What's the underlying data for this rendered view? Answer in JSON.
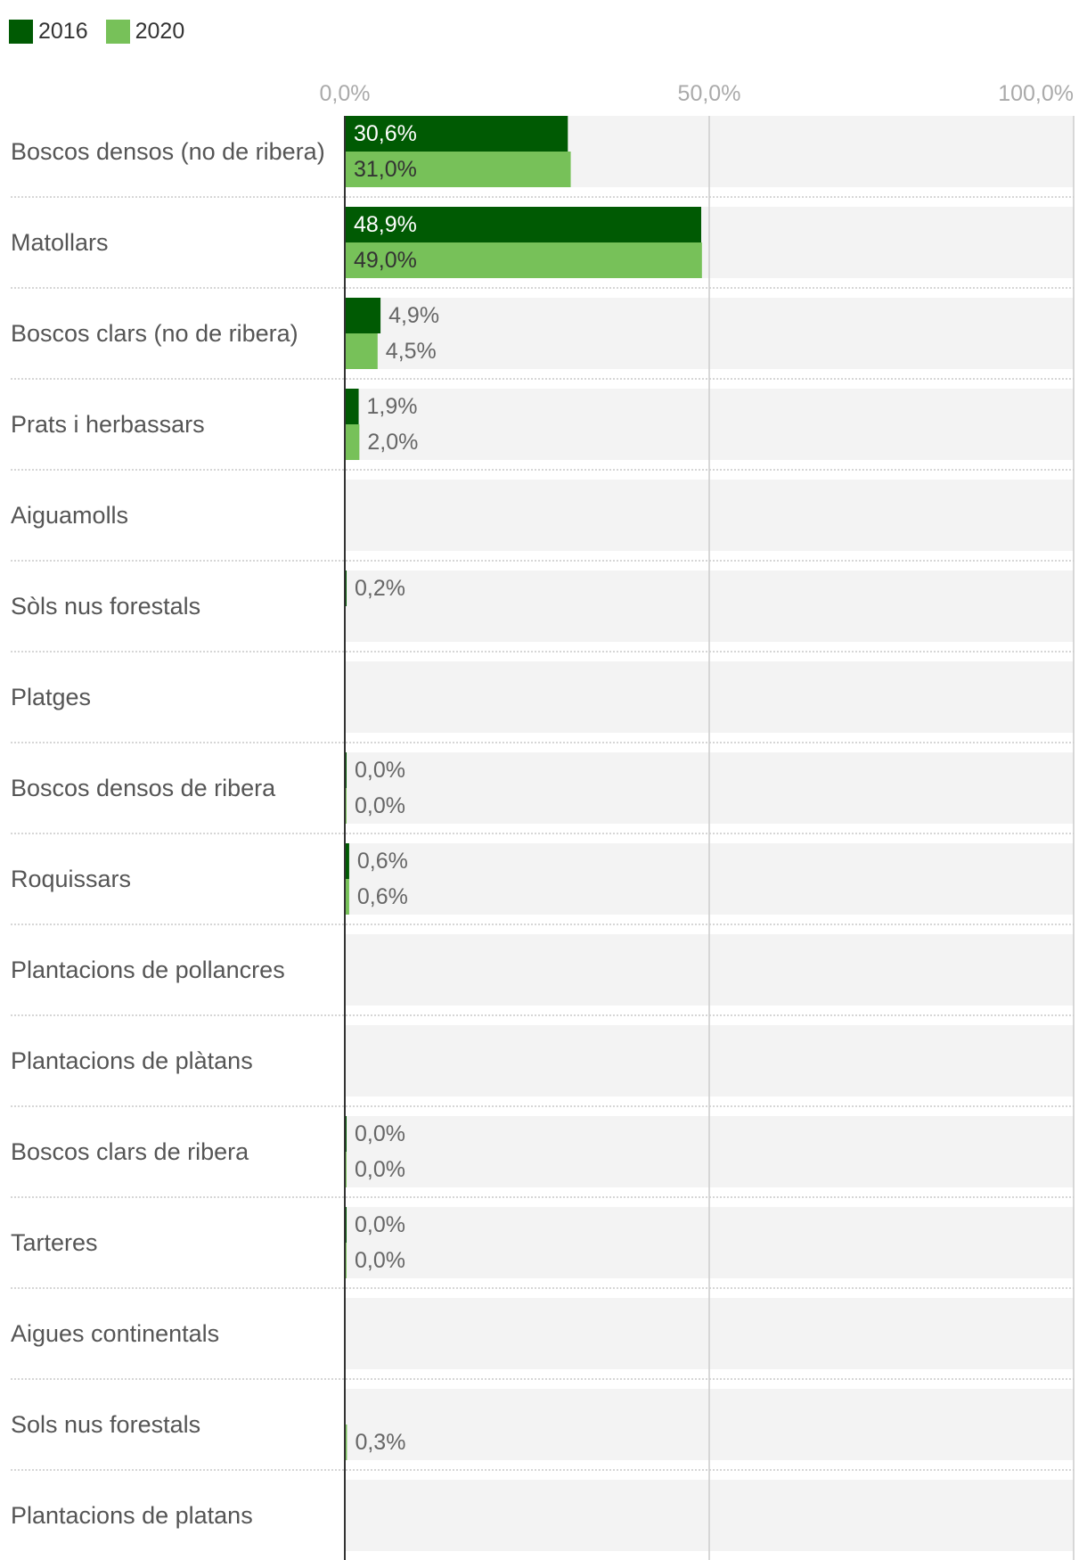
{
  "colors": {
    "2016": "#005a03",
    "2020": "#77c159",
    "row_bg": "#f3f3f3",
    "gridline": "#cccccc",
    "axis": "#333333"
  },
  "chart_data": {
    "type": "bar",
    "orientation": "horizontal",
    "legend_position": "top-left",
    "grid": true,
    "xlim": [
      0,
      100
    ],
    "x_ticks": [
      "0,0%",
      "50,0%",
      "100,0%"
    ],
    "x_tick_values": [
      0,
      50,
      100
    ],
    "categories": [
      "Boscos densos (no de ribera)",
      "Matollars",
      "Boscos clars (no de ribera)",
      "Prats i herbassars",
      "Aiguamolls",
      "Sòls nus forestals",
      "Platges",
      "Boscos densos de ribera",
      "Roquissars",
      "Plantacions de pollancres",
      "Plantacions de plàtans",
      "Boscos clars de ribera",
      "Tarteres",
      "Aigues continentals",
      "Sols nus forestals",
      "Plantacions de platans"
    ],
    "series": [
      {
        "name": "2016",
        "values": [
          30.6,
          48.9,
          4.9,
          1.9,
          null,
          0.2,
          null,
          0.0,
          0.6,
          null,
          null,
          0.0,
          0.0,
          null,
          null,
          null
        ],
        "labels": [
          "30,6%",
          "48,9%",
          "4,9%",
          "1,9%",
          "",
          "0,2%",
          "",
          "0,0%",
          "0,6%",
          "",
          "",
          "0,0%",
          "0,0%",
          "",
          "",
          ""
        ]
      },
      {
        "name": "2020",
        "values": [
          31.0,
          49.0,
          4.5,
          2.0,
          null,
          null,
          null,
          0.0,
          0.6,
          null,
          null,
          0.0,
          0.0,
          null,
          0.3,
          null
        ],
        "labels": [
          "31,0%",
          "49,0%",
          "4,5%",
          "2,0%",
          "",
          "",
          "",
          "0,0%",
          "0,6%",
          "",
          "",
          "0,0%",
          "0,0%",
          "",
          "0,3%",
          ""
        ]
      }
    ]
  }
}
